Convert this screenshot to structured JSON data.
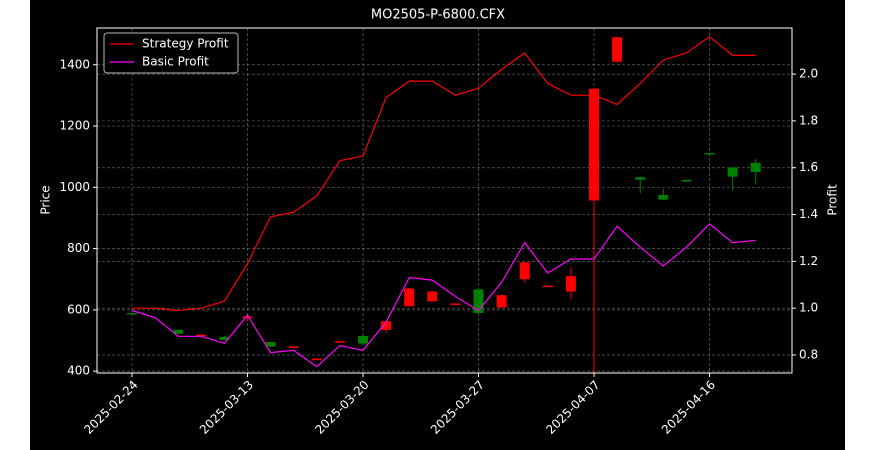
{
  "chart_data": {
    "type": "candlestick",
    "title": "MO2505-P-6800.CFX",
    "ylabel": "Price",
    "y2label": "Profit",
    "categories": [
      "2025-02-24",
      null,
      null,
      null,
      null,
      "2025-03-13",
      null,
      null,
      null,
      null,
      "2025-03-20",
      null,
      null,
      null,
      null,
      "2025-03-27",
      null,
      null,
      null,
      null,
      "2025-04-07",
      null,
      null,
      null,
      null,
      "2025-04-16",
      null,
      null
    ],
    "open": [
      585,
      null,
      522,
      519,
      502,
      578,
      480,
      481,
      441,
      498,
      490,
      563,
      670,
      660,
      621,
      590,
      648,
      755,
      679,
      710,
      1322,
      1490,
      1025,
      960,
      1020,
      1110,
      1035,
      1050
    ],
    "high": [
      592,
      null,
      535,
      520,
      515,
      580,
      495,
      482,
      442,
      499,
      515,
      565,
      672,
      662,
      622,
      672,
      650,
      756,
      680,
      740,
      1325,
      1492,
      1035,
      995,
      1025,
      1112,
      1065,
      1093
    ],
    "low": [
      583,
      null,
      520,
      517,
      500,
      562,
      478,
      479,
      439,
      496,
      488,
      525,
      610,
      627,
      619,
      585,
      606,
      690,
      677,
      635,
      395,
      1408,
      980,
      958,
      1018,
      1108,
      990,
      1010
    ],
    "close": [
      590,
      null,
      535,
      517,
      512,
      576,
      495,
      479,
      439,
      496,
      515,
      535,
      612,
      628,
      619,
      667,
      608,
      700,
      677,
      660,
      957,
      1410,
      1033,
      975,
      1024,
      1112,
      1065,
      1080
    ],
    "up_color": "#008000",
    "down_color": "#ff0000",
    "series": [
      {
        "name": "Strategy Profit",
        "color": "#ff0000",
        "axis": "y2",
        "values": [
          1.0,
          1.0,
          0.99,
          1.0,
          1.03,
          1.19,
          1.39,
          1.41,
          1.48,
          1.63,
          1.65,
          1.9,
          1.97,
          1.97,
          1.91,
          1.94,
          2.02,
          2.09,
          1.96,
          1.91,
          1.91,
          1.87,
          1.96,
          2.06,
          2.09,
          2.16,
          2.08,
          2.08
        ]
      },
      {
        "name": "Basic Profit",
        "color": "#ff00ff",
        "axis": "y2",
        "values": [
          0.99,
          0.96,
          0.88,
          0.88,
          0.85,
          0.97,
          0.81,
          0.82,
          0.75,
          0.84,
          0.82,
          0.94,
          1.13,
          1.12,
          1.05,
          0.99,
          1.11,
          1.28,
          1.15,
          1.21,
          1.21,
          1.35,
          1.26,
          1.18,
          1.26,
          1.36,
          1.28,
          1.29
        ]
      }
    ],
    "ylim": [
      394,
      1520
    ],
    "yticks": [
      400,
      600,
      800,
      1000,
      1200,
      1400
    ],
    "y2lim": [
      0.723,
      2.197
    ],
    "y2ticks": [
      0.8,
      {
        "value": 1,
        "label": "1.0"
      },
      1.2,
      1.4,
      1.6,
      1.8,
      {
        "value": 2,
        "label": "2.0"
      }
    ],
    "grid": true,
    "legend": "upper left"
  }
}
